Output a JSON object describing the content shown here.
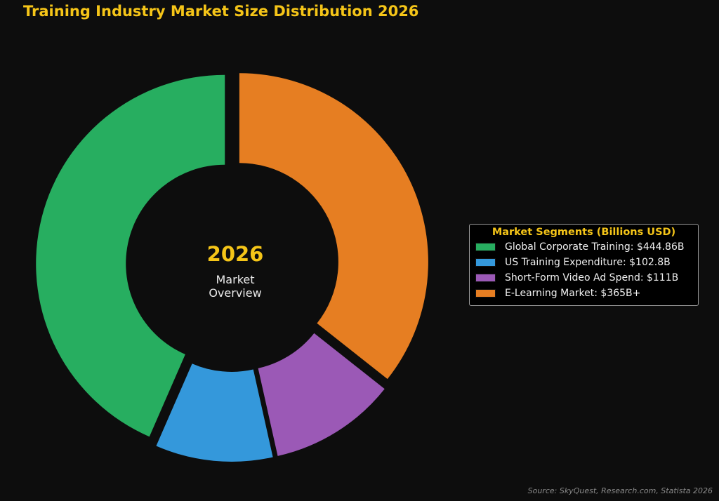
{
  "chart_data": {
    "type": "pie",
    "variant": "donut",
    "title": "Training Industry Market Size Distribution 2026",
    "center_label": {
      "year": "2026",
      "line1": "Market",
      "line2": "Overview"
    },
    "legend_title": "Market Segments (Billions USD)",
    "legend_placement": "right",
    "categories": [
      "Global Corporate Training: $444.86B",
      "US Training Expenditure: $102.8B",
      "Short-Form Video Ad Spend: $111B",
      "E-Learning Market: $365B+"
    ],
    "values": [
      444.86,
      102.8,
      111,
      365
    ],
    "colors": [
      "#27ae60",
      "#3498db",
      "#9b59b6",
      "#e67e22"
    ],
    "source": "Source: SkyQuest, Research.com, Statista 2026"
  }
}
